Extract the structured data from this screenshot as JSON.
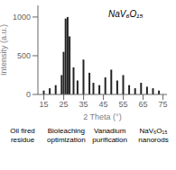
{
  "chart_data": {
    "type": "bar",
    "x_label": "2 Theta (°)",
    "y_label": "Intensity (a.u.)",
    "x": [
      15,
      18,
      21,
      24,
      25,
      26,
      27,
      28,
      30,
      32,
      35,
      38,
      40,
      43,
      46,
      49,
      52,
      55,
      58,
      61,
      64,
      67,
      70,
      73
    ],
    "values": [
      0.05,
      0.08,
      0.12,
      0.25,
      0.55,
      0.98,
      1.0,
      0.75,
      0.35,
      0.18,
      0.45,
      0.28,
      0.15,
      0.12,
      0.22,
      0.32,
      0.18,
      0.25,
      0.12,
      0.08,
      0.15,
      0.1,
      0.08,
      0.05
    ],
    "color": "#222222",
    "xlim": [
      12,
      77
    ],
    "xticks": [
      15,
      25,
      35,
      45,
      55,
      65,
      75
    ],
    "ylim": [
      0,
      1.15
    ],
    "yticks": [
      {
        "value": 0,
        "label": "0"
      },
      {
        "value": 0.5,
        "label": "500"
      },
      {
        "value": 1.0,
        "label": "1000"
      }
    ],
    "grid": false,
    "annotations": [
      "NaV₆O₁₅",
      "Oil fired residue",
      "Bioleaching\noptimization",
      "Vanadium\npurification",
      "NaV₆O₁₅\nnanorods"
    ]
  }
}
